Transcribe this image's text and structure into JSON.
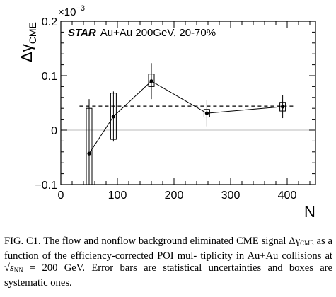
{
  "chart_data": {
    "type": "scatter",
    "ylabel": "Δγ",
    "ylabel_subscript": "CME",
    "xlabel": "N",
    "y_multiplier": "×10",
    "y_multiplier_exp": "−3",
    "annotation_bold": "STAR",
    "annotation_text": "Au+Au 200GeV, 20-70%",
    "xlim": [
      0,
      450
    ],
    "ylim": [
      -0.1,
      0.2
    ],
    "x_ticks": [
      0,
      100,
      200,
      300,
      400
    ],
    "x_tick_labels": [
      "0",
      "100",
      "200",
      "300",
      "400"
    ],
    "y_ticks": [
      -0.1,
      0,
      0.1,
      0.2
    ],
    "y_tick_labels": [
      "−0.1",
      "0",
      "0.1",
      "0.2"
    ],
    "series": [
      {
        "points": [
          {
            "x": 50,
            "y": -0.043,
            "stat_err": 0.1,
            "sys_lo": -0.1,
            "sys_hi": 0.04
          },
          {
            "x": 93,
            "y": 0.025,
            "stat_err": 0.046,
            "sys_lo": -0.017,
            "sys_hi": 0.068
          },
          {
            "x": 160,
            "y": 0.09,
            "stat_err": 0.033,
            "sys_lo": 0.08,
            "sys_hi": 0.103
          },
          {
            "x": 258,
            "y": 0.031,
            "stat_err": 0.024,
            "sys_lo": 0.024,
            "sys_hi": 0.038
          },
          {
            "x": 392,
            "y": 0.043,
            "stat_err": 0.021,
            "sys_lo": 0.035,
            "sys_hi": 0.051
          }
        ]
      }
    ],
    "reference_lines": [
      {
        "y": 0.044,
        "x_from": 33,
        "x_to": 412,
        "style": "dashed",
        "color": "#000000"
      },
      {
        "y": 0,
        "x_from": 0,
        "x_to": 450,
        "style": "solid",
        "color": "#bbbbbb"
      }
    ],
    "colors": {
      "series": "#000000",
      "zero_line": "#bbbbbb"
    }
  },
  "caption": {
    "label": "FIG. C1.",
    "lines": [
      "The flow and nonflow background eliminated CME",
      "signal Δγ",
      "CME",
      " as a function of the efficiency-corrected POI mul-",
      "tiplicity in Au+Au collisions at ",
      "√s",
      "NN",
      " = 200 GeV. Error bars",
      "are statistical uncertainties and boxes are systematic ones."
    ]
  }
}
